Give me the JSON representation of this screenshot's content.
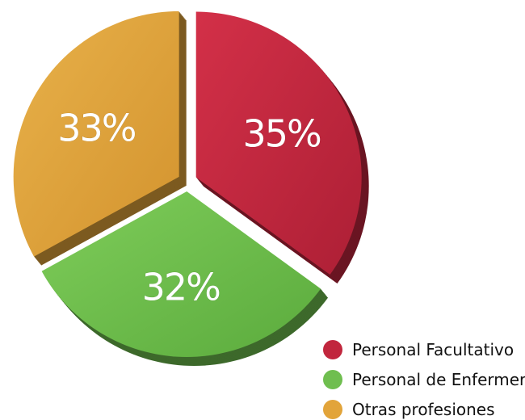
{
  "chart_data": {
    "type": "pie",
    "title": "",
    "categories": [
      "Personal Facultativo",
      "Personal de Enfermería",
      "Otras profesiones"
    ],
    "values": [
      35,
      32,
      33
    ],
    "value_labels": [
      "35%",
      "32%",
      "33%"
    ],
    "colors": [
      "#c1263d",
      "#6fbe4f",
      "#e2a43a"
    ],
    "legend_position": "bottom-right",
    "style": "exploded-3d"
  }
}
